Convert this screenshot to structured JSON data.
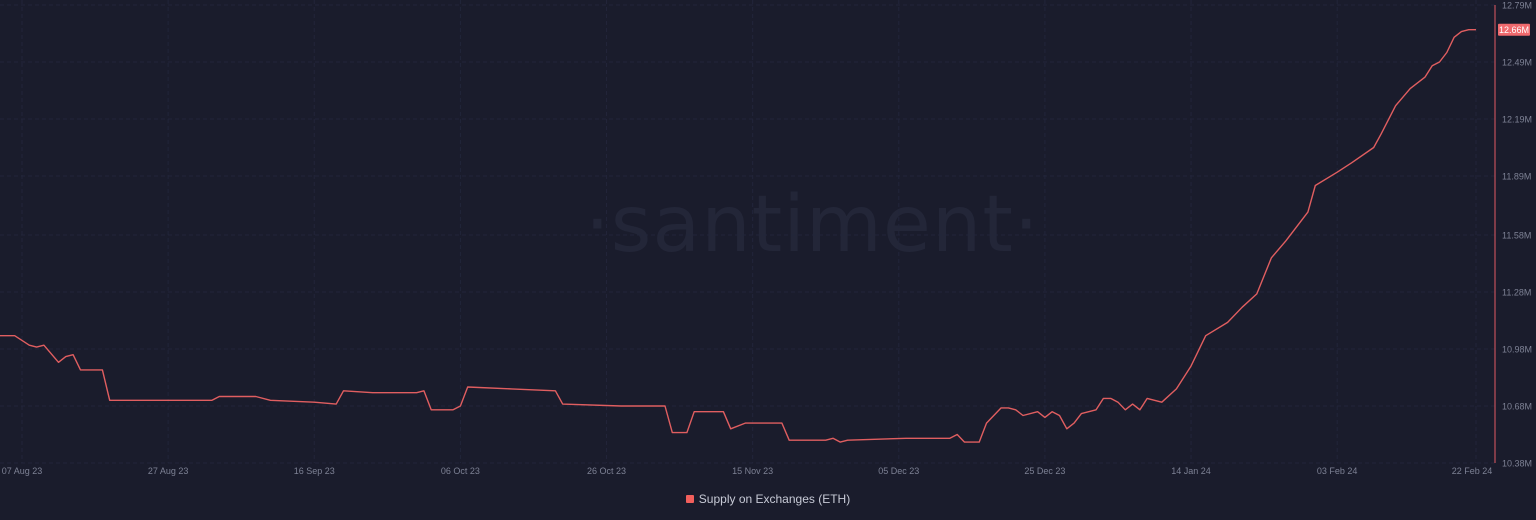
{
  "watermark": "·santiment·",
  "colors": {
    "background": "#1a1c2c",
    "line": "#e05e60",
    "grid": "#22253a",
    "axis_text": "#7d8194"
  },
  "chart_data": {
    "type": "line",
    "title": "",
    "xlabel": "",
    "ylabel": "",
    "y_axis_side": "right",
    "ylim": [
      10.38,
      12.79
    ],
    "y_ticks": [
      "12.79M",
      "12.49M",
      "12.19M",
      "11.89M",
      "11.58M",
      "11.28M",
      "10.98M",
      "10.68M",
      "10.38M"
    ],
    "y_tick_values": [
      12.79,
      12.49,
      12.19,
      11.89,
      11.58,
      11.28,
      10.98,
      10.68,
      10.38
    ],
    "x_ticks": [
      "07 Aug 23",
      "27 Aug 23",
      "16 Sep 23",
      "06 Oct 23",
      "26 Oct 23",
      "15 Nov 23",
      "05 Dec 23",
      "25 Dec 23",
      "14 Jan 24",
      "03 Feb 24",
      "22 Feb 24"
    ],
    "x_tick_dates": [
      "2023-08-07",
      "2023-08-27",
      "2023-09-16",
      "2023-10-06",
      "2023-10-26",
      "2023-11-15",
      "2023-12-05",
      "2023-12-25",
      "2024-01-14",
      "2024-02-03",
      "2024-02-22"
    ],
    "grid": true,
    "legend_position": "bottom",
    "last_value_label": "12.66M",
    "series": [
      {
        "name": "Supply on Exchanges (ETH)",
        "unit": "M",
        "color": "#e05e60",
        "points": [
          [
            "2023-08-04",
            11.05
          ],
          [
            "2023-08-06",
            11.05
          ],
          [
            "2023-08-08",
            11.0
          ],
          [
            "2023-08-09",
            10.99
          ],
          [
            "2023-08-10",
            11.0
          ],
          [
            "2023-08-12",
            10.91
          ],
          [
            "2023-08-13",
            10.94
          ],
          [
            "2023-08-14",
            10.95
          ],
          [
            "2023-08-15",
            10.87
          ],
          [
            "2023-08-18",
            10.87
          ],
          [
            "2023-08-19",
            10.71
          ],
          [
            "2023-08-24",
            10.71
          ],
          [
            "2023-09-02",
            10.71
          ],
          [
            "2023-09-03",
            10.73
          ],
          [
            "2023-09-08",
            10.73
          ],
          [
            "2023-09-10",
            10.71
          ],
          [
            "2023-09-16",
            10.7
          ],
          [
            "2023-09-19",
            10.69
          ],
          [
            "2023-09-20",
            10.76
          ],
          [
            "2023-09-24",
            10.75
          ],
          [
            "2023-09-30",
            10.75
          ],
          [
            "2023-10-01",
            10.76
          ],
          [
            "2023-10-02",
            10.66
          ],
          [
            "2023-10-05",
            10.66
          ],
          [
            "2023-10-06",
            10.68
          ],
          [
            "2023-10-07",
            10.78
          ],
          [
            "2023-10-13",
            10.77
          ],
          [
            "2023-10-19",
            10.76
          ],
          [
            "2023-10-20",
            10.69
          ],
          [
            "2023-10-28",
            10.68
          ],
          [
            "2023-10-31",
            10.68
          ],
          [
            "2023-11-03",
            10.68
          ],
          [
            "2023-11-04",
            10.54
          ],
          [
            "2023-11-06",
            10.54
          ],
          [
            "2023-11-07",
            10.65
          ],
          [
            "2023-11-11",
            10.65
          ],
          [
            "2023-11-12",
            10.56
          ],
          [
            "2023-11-14",
            10.59
          ],
          [
            "2023-11-19",
            10.59
          ],
          [
            "2023-11-20",
            10.5
          ],
          [
            "2023-11-25",
            10.5
          ],
          [
            "2023-11-26",
            10.51
          ],
          [
            "2023-11-27",
            10.49
          ],
          [
            "2023-11-28",
            10.5
          ],
          [
            "2023-12-06",
            10.51
          ],
          [
            "2023-12-12",
            10.51
          ],
          [
            "2023-12-13",
            10.53
          ],
          [
            "2023-12-14",
            10.49
          ],
          [
            "2023-12-16",
            10.49
          ],
          [
            "2023-12-17",
            10.59
          ],
          [
            "2023-12-19",
            10.67
          ],
          [
            "2023-12-20",
            10.67
          ],
          [
            "2023-12-21",
            10.66
          ],
          [
            "2023-12-22",
            10.63
          ],
          [
            "2023-12-24",
            10.65
          ],
          [
            "2023-12-25",
            10.62
          ],
          [
            "2023-12-26",
            10.65
          ],
          [
            "2023-12-27",
            10.63
          ],
          [
            "2023-12-28",
            10.56
          ],
          [
            "2023-12-29",
            10.59
          ],
          [
            "2023-12-30",
            10.64
          ],
          [
            "2024-01-01",
            10.66
          ],
          [
            "2024-01-02",
            10.72
          ],
          [
            "2024-01-03",
            10.72
          ],
          [
            "2024-01-04",
            10.7
          ],
          [
            "2024-01-05",
            10.66
          ],
          [
            "2024-01-06",
            10.69
          ],
          [
            "2024-01-07",
            10.66
          ],
          [
            "2024-01-08",
            10.72
          ],
          [
            "2024-01-10",
            10.7
          ],
          [
            "2024-01-12",
            10.77
          ],
          [
            "2024-01-14",
            10.89
          ],
          [
            "2024-01-16",
            11.05
          ],
          [
            "2024-01-19",
            11.12
          ],
          [
            "2024-01-21",
            11.2
          ],
          [
            "2024-01-23",
            11.27
          ],
          [
            "2024-01-25",
            11.46
          ],
          [
            "2024-01-27",
            11.55
          ],
          [
            "2024-01-30",
            11.7
          ],
          [
            "2024-01-31",
            11.84
          ],
          [
            "2024-02-03",
            11.91
          ],
          [
            "2024-02-05",
            11.96
          ],
          [
            "2024-02-08",
            12.04
          ],
          [
            "2024-02-09",
            12.11
          ],
          [
            "2024-02-11",
            12.26
          ],
          [
            "2024-02-13",
            12.35
          ],
          [
            "2024-02-15",
            12.41
          ],
          [
            "2024-02-16",
            12.47
          ],
          [
            "2024-02-17",
            12.49
          ],
          [
            "2024-02-18",
            12.54
          ],
          [
            "2024-02-19",
            12.62
          ],
          [
            "2024-02-20",
            12.65
          ],
          [
            "2024-02-21",
            12.66
          ],
          [
            "2024-02-22",
            12.66
          ]
        ]
      }
    ]
  }
}
